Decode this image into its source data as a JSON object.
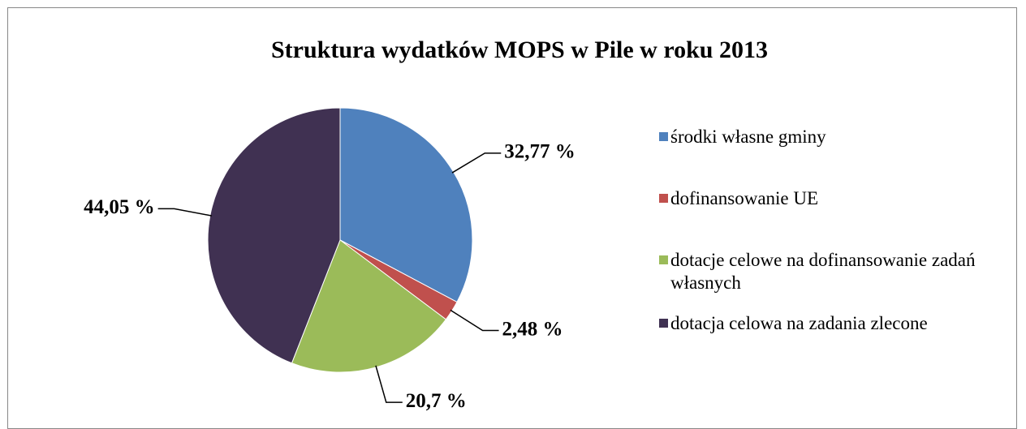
{
  "chart_data": {
    "type": "pie",
    "title": "Struktura wydatków MOPS w Pile w roku 2013",
    "categories": [
      "środki własne gminy",
      "dofinansowanie UE",
      "dotacje celowe na dofinansowanie zadań własnych",
      "dotacja celowa na zadania zlecone"
    ],
    "values": [
      32.77,
      2.48,
      20.7,
      44.05
    ],
    "value_labels": [
      "32,77 %",
      "2,48 %",
      "20,7 %",
      "44,05 %"
    ],
    "colors": [
      "#4f81bd",
      "#c0504d",
      "#9bbb59",
      "#403152"
    ],
    "legend": "right"
  }
}
